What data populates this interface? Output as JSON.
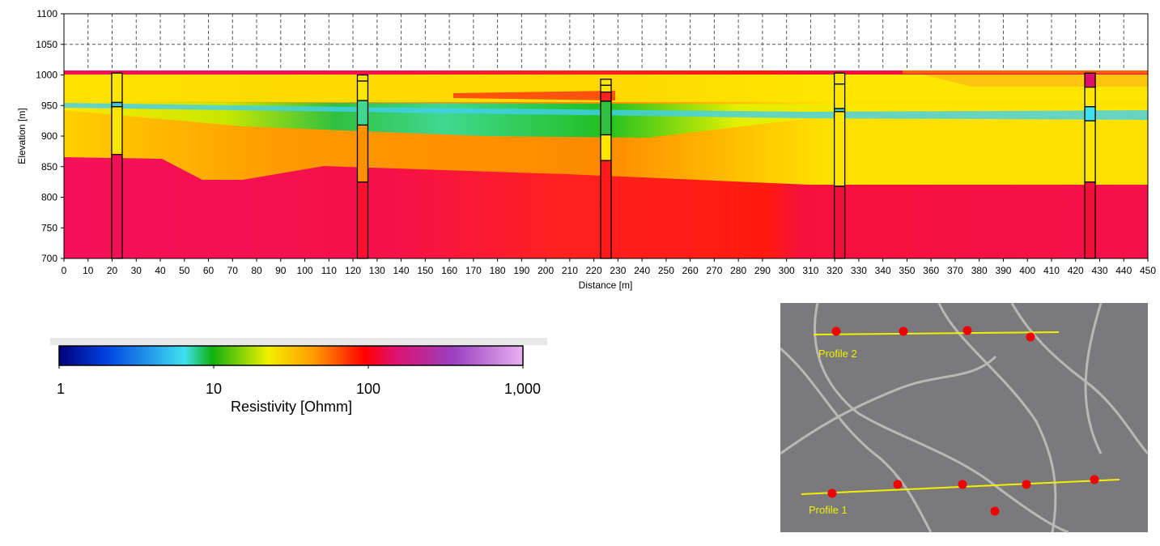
{
  "chart_data": [
    {
      "type": "section",
      "xlabel": "Distance [m]",
      "ylabel": "Elevation [m]",
      "xlim": [
        0,
        450
      ],
      "ylim": [
        700,
        1100
      ],
      "xticks": [
        0,
        10,
        20,
        30,
        40,
        50,
        60,
        70,
        80,
        90,
        100,
        110,
        120,
        130,
        140,
        150,
        160,
        170,
        180,
        190,
        200,
        210,
        220,
        230,
        240,
        250,
        260,
        270,
        280,
        290,
        300,
        310,
        320,
        330,
        340,
        350,
        360,
        370,
        380,
        390,
        400,
        410,
        420,
        430,
        440,
        450
      ],
      "yticks": [
        700,
        750,
        800,
        850,
        900,
        950,
        1000,
        1050,
        1100
      ],
      "grid": true,
      "boreholes": [
        {
          "x": 22,
          "top": 1003,
          "boundaries": [
            955,
            948,
            870
          ],
          "colors": [
            "#ffe600",
            "#40c8e0",
            "#ffe600",
            "#f0105a"
          ]
        },
        {
          "x": 124,
          "top": 1000,
          "boundaries": [
            990,
            958,
            918,
            825
          ],
          "colors": [
            "#ffe600",
            "#ffe600",
            "#40d890",
            "#ff9000",
            "#ff1030"
          ]
        },
        {
          "x": 225,
          "top": 993,
          "boundaries": [
            983,
            972,
            957,
            902,
            860
          ],
          "colors": [
            "#ffe600",
            "#ffe600",
            "#ff2020",
            "#30c040",
            "#ffe600",
            "#ff1a1a"
          ]
        },
        {
          "x": 322,
          "top": 1003,
          "boundaries": [
            985,
            945,
            940,
            818
          ],
          "colors": [
            "#ffe600",
            "#ffe600",
            "#40c8e0",
            "#ffe600",
            "#f0103a"
          ]
        },
        {
          "x": 426,
          "top": 1003,
          "boundaries": [
            980,
            948,
            925,
            825
          ],
          "colors": [
            "#e0106a",
            "#ffe600",
            "#40e0f0",
            "#ffe600",
            "#f0103a"
          ]
        }
      ]
    },
    {
      "type": "colorbar",
      "label": "Resistivity [Ohmm]",
      "log": true,
      "xlim": [
        1,
        1000
      ],
      "xticks": [
        1,
        10,
        100,
        {
          "value": 1000,
          "label": "1,000"
        }
      ]
    }
  ],
  "map": {
    "profile_labels": [
      "Profile 2",
      "Profile 1"
    ]
  }
}
